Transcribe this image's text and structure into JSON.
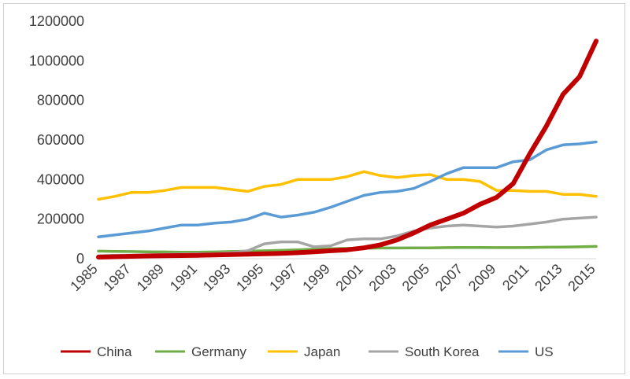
{
  "chart_data": {
    "type": "line",
    "title": "",
    "xlabel": "",
    "ylabel": "",
    "ylim": [
      0,
      1200000
    ],
    "yticks": [
      0,
      200000,
      400000,
      600000,
      800000,
      1000000,
      1200000
    ],
    "ytick_labels": [
      "0",
      "200000",
      "400000",
      "600000",
      "800000",
      "1000000",
      "1200000"
    ],
    "x": [
      1985,
      1986,
      1987,
      1988,
      1989,
      1990,
      1991,
      1992,
      1993,
      1994,
      1995,
      1996,
      1997,
      1998,
      1999,
      2000,
      2001,
      2002,
      2003,
      2004,
      2005,
      2006,
      2007,
      2008,
      2009,
      2010,
      2011,
      2012,
      2013,
      2014,
      2015
    ],
    "xtick_labels": [
      "1985",
      "1987",
      "1989",
      "1991",
      "1993",
      "1995",
      "1997",
      "1999",
      "2001",
      "2003",
      "2005",
      "2007",
      "2009",
      "2011",
      "2013",
      "2015"
    ],
    "grid": false,
    "legend_position": "bottom",
    "series": [
      {
        "name": "China",
        "color": "#c00000",
        "values": [
          8000,
          10000,
          12000,
          14000,
          15000,
          16000,
          17000,
          19000,
          21000,
          23000,
          25000,
          27000,
          30000,
          35000,
          40000,
          45000,
          55000,
          70000,
          95000,
          130000,
          170000,
          200000,
          230000,
          275000,
          310000,
          380000,
          530000,
          670000,
          830000,
          920000,
          1100000
        ]
      },
      {
        "name": "Germany",
        "color": "#70ad47",
        "values": [
          38000,
          37000,
          36000,
          35000,
          34000,
          33000,
          33000,
          34000,
          36000,
          38000,
          40000,
          42000,
          45000,
          48000,
          50000,
          52000,
          53000,
          54000,
          54000,
          55000,
          55000,
          56000,
          57000,
          57000,
          56000,
          56000,
          57000,
          58000,
          59000,
          60000,
          62000
        ]
      },
      {
        "name": "Japan",
        "color": "#ffc000",
        "values": [
          300000,
          315000,
          335000,
          335000,
          345000,
          360000,
          360000,
          360000,
          350000,
          340000,
          365000,
          375000,
          400000,
          400000,
          400000,
          415000,
          440000,
          420000,
          410000,
          420000,
          425000,
          400000,
          400000,
          390000,
          345000,
          345000,
          340000,
          340000,
          325000,
          325000,
          315000
        ]
      },
      {
        "name": "South Korea",
        "color": "#a5a5a5",
        "values": [
          15000,
          17000,
          18000,
          20000,
          22000,
          24000,
          25000,
          26000,
          30000,
          40000,
          75000,
          85000,
          85000,
          60000,
          65000,
          95000,
          100000,
          100000,
          115000,
          140000,
          155000,
          165000,
          170000,
          165000,
          160000,
          165000,
          175000,
          185000,
          200000,
          205000,
          210000
        ]
      },
      {
        "name": "US",
        "color": "#5b9bd5",
        "values": [
          110000,
          120000,
          130000,
          140000,
          155000,
          170000,
          170000,
          180000,
          185000,
          200000,
          230000,
          210000,
          220000,
          235000,
          260000,
          290000,
          320000,
          335000,
          340000,
          355000,
          390000,
          430000,
          460000,
          460000,
          460000,
          490000,
          500000,
          550000,
          575000,
          580000,
          590000
        ]
      }
    ]
  }
}
